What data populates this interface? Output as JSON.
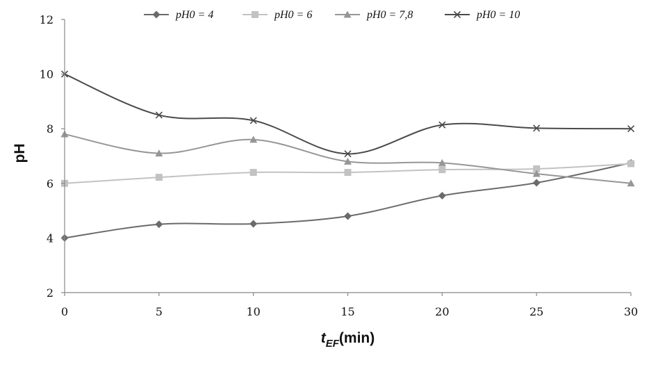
{
  "chart_data": {
    "type": "line",
    "xlabel": "t",
    "xlabel_subscript": "EF",
    "xlabel_suffix": "(min)",
    "ylabel": "pH",
    "xlim": [
      0,
      30
    ],
    "ylim": [
      2,
      12
    ],
    "x_ticks": [
      0,
      5,
      10,
      15,
      20,
      25,
      30
    ],
    "y_ticks": [
      2,
      4,
      6,
      8,
      10,
      12
    ],
    "grid": false,
    "legend_position": "top",
    "x": [
      0,
      5,
      10,
      15,
      20,
      25,
      30
    ],
    "series": [
      {
        "name": "pH0 = 4",
        "marker": "diamond",
        "color": "#6a6a6a",
        "values": [
          4.0,
          4.5,
          4.52,
          4.8,
          5.55,
          6.02,
          6.75
        ]
      },
      {
        "name": "pH0 = 6",
        "marker": "square",
        "color": "#c2c2c2",
        "values": [
          6.0,
          6.22,
          6.4,
          6.4,
          6.5,
          6.53,
          6.72
        ]
      },
      {
        "name": "pH0 = 7,8",
        "marker": "triangle",
        "color": "#969696",
        "values": [
          7.8,
          7.1,
          7.6,
          6.8,
          6.75,
          6.35,
          6.0
        ]
      },
      {
        "name": "pH0 = 10",
        "marker": "x",
        "color": "#4a4a4a",
        "values": [
          10.0,
          8.5,
          8.3,
          7.08,
          8.14,
          8.02,
          8.0
        ]
      }
    ]
  }
}
